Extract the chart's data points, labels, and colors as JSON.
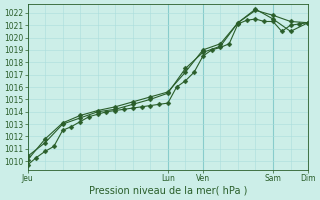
{
  "xlabel": "Pression niveau de la mer( hPa )",
  "bg_color": "#cceee8",
  "grid_color_minor": "#aadddd",
  "grid_color_major": "#88cccc",
  "line_color": "#2a5e2a",
  "marker_color": "#2a5e2a",
  "ylim": [
    1009.3,
    1022.7
  ],
  "yticks": [
    1010,
    1011,
    1012,
    1013,
    1014,
    1015,
    1016,
    1017,
    1018,
    1019,
    1020,
    1021,
    1022
  ],
  "xlim": [
    0,
    96
  ],
  "day_ticks": [
    0,
    48,
    60,
    84,
    96
  ],
  "day_labels": [
    "Jeu",
    "Lun",
    "Ven",
    "Sam",
    "Dim"
  ],
  "minor_xtick_interval": 6,
  "series1_x": [
    0,
    3,
    6,
    9,
    12,
    15,
    18,
    21,
    24,
    27,
    30,
    33,
    36,
    39,
    42,
    45,
    48,
    51,
    54,
    57,
    60,
    63,
    66,
    69,
    72,
    75,
    78,
    81,
    84,
    87,
    90,
    93,
    96
  ],
  "series1_y": [
    1009.7,
    1010.3,
    1010.8,
    1011.2,
    1012.5,
    1012.8,
    1013.2,
    1013.6,
    1013.8,
    1014.0,
    1014.1,
    1014.2,
    1014.3,
    1014.4,
    1014.5,
    1014.6,
    1014.7,
    1016.0,
    1016.5,
    1017.2,
    1018.5,
    1019.0,
    1019.2,
    1019.5,
    1021.1,
    1021.4,
    1021.5,
    1021.3,
    1021.3,
    1020.5,
    1021.0,
    1021.1,
    1021.2
  ],
  "series2_x": [
    0,
    6,
    12,
    18,
    24,
    30,
    36,
    42,
    48,
    54,
    60,
    66,
    72,
    78,
    84,
    90,
    96
  ],
  "series2_y": [
    1010.4,
    1011.5,
    1013.0,
    1013.5,
    1014.0,
    1014.2,
    1014.6,
    1015.0,
    1015.5,
    1017.5,
    1018.8,
    1019.3,
    1021.2,
    1022.2,
    1021.8,
    1021.3,
    1021.2
  ],
  "series3_x": [
    0,
    6,
    12,
    18,
    24,
    30,
    36,
    42,
    48,
    54,
    60,
    66,
    72,
    78,
    84,
    90,
    96
  ],
  "series3_y": [
    1010.1,
    1011.8,
    1013.1,
    1013.7,
    1014.1,
    1014.4,
    1014.8,
    1015.2,
    1015.6,
    1017.2,
    1019.0,
    1019.5,
    1021.2,
    1022.3,
    1021.5,
    1020.5,
    1021.2
  ],
  "tick_fontsize": 5.5,
  "label_fontsize": 7,
  "linewidth": 0.8,
  "markersize": 2.5
}
